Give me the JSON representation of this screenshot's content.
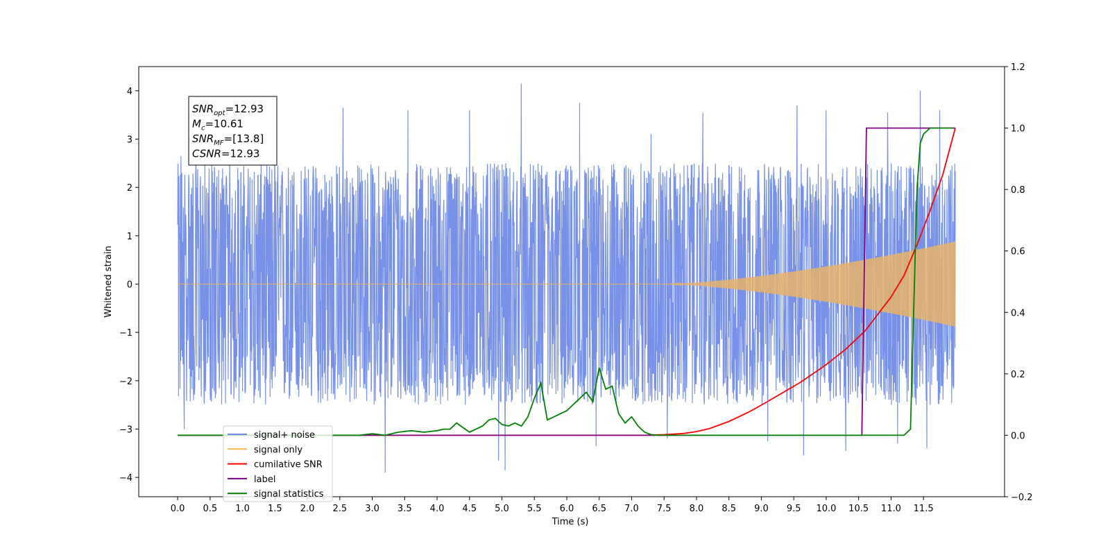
{
  "chart_data": {
    "type": "line",
    "xlabel": "Time (s)",
    "ylabel": "Whitened strain",
    "xlim": [
      -0.6,
      12.75
    ],
    "ylim": [
      -4.4,
      4.5
    ],
    "y2lim": [
      -0.2,
      1.2
    ],
    "x_ticks": [
      "0.0",
      "0.5",
      "1.0",
      "1.5",
      "2.0",
      "2.5",
      "3.0",
      "3.5",
      "4.0",
      "4.5",
      "5.0",
      "5.5",
      "6.0",
      "6.5",
      "7.0",
      "7.5",
      "8.0",
      "8.5",
      "9.0",
      "9.5",
      "10.0",
      "10.5",
      "11.0",
      "11.5"
    ],
    "y_ticks": [
      "−4",
      "−3",
      "−2",
      "−1",
      "0",
      "1",
      "2",
      "3",
      "4"
    ],
    "y2_ticks": [
      "−0.2",
      "0.0",
      "0.2",
      "0.4",
      "0.6",
      "0.8",
      "1.0",
      "1.2"
    ],
    "info_box": [
      {
        "base": "SNR",
        "sub": "opt",
        "text": "=12.93"
      },
      {
        "base": "M",
        "sub": "c",
        "text": "=10.61"
      },
      {
        "base": "SNR",
        "sub": "MF",
        "text": "=[13.8]"
      },
      {
        "base": "CSNR",
        "sub": "",
        "text": "=12.93"
      }
    ],
    "legend": {
      "placement": "lower-left",
      "entries": [
        {
          "label": "signal+ noise",
          "color": "#6f8be6"
        },
        {
          "label": "signal only",
          "color": "#f5b94a"
        },
        {
          "label": "cumilative SNR",
          "color": "#ff0000"
        },
        {
          "label": "label",
          "color": "#800080"
        },
        {
          "label": "signal statistics",
          "color": "#008000"
        }
      ]
    },
    "series": [
      {
        "name": "signal+ noise",
        "axis": "left",
        "color": "#6f8be6",
        "kind": "noise",
        "envelope": 2.5,
        "x_range": [
          0.0,
          11.99
        ],
        "spikes": [
          [
            0.05,
            2.65
          ],
          [
            0.1,
            -3.0
          ],
          [
            1.5,
            3.0
          ],
          [
            2.55,
            3.65
          ],
          [
            3.2,
            -3.9
          ],
          [
            3.55,
            3.6
          ],
          [
            4.5,
            3.6
          ],
          [
            4.95,
            -3.65
          ],
          [
            5.05,
            -3.85
          ],
          [
            5.3,
            4.15
          ],
          [
            6.2,
            3.75
          ],
          [
            6.45,
            -3.35
          ],
          [
            7.3,
            3.1
          ],
          [
            7.55,
            -3.2
          ],
          [
            8.1,
            3.55
          ],
          [
            9.1,
            -3.25
          ],
          [
            9.55,
            3.7
          ],
          [
            9.65,
            -3.55
          ],
          [
            10.0,
            3.6
          ],
          [
            10.3,
            -3.45
          ],
          [
            10.95,
            3.55
          ],
          [
            11.1,
            -3.3
          ],
          [
            11.45,
            4.0
          ],
          [
            11.55,
            -3.4
          ],
          [
            11.75,
            3.6
          ]
        ]
      },
      {
        "name": "signal only",
        "axis": "left",
        "color": "#e8b36a",
        "kind": "chirp",
        "x_range": [
          0.0,
          11.99
        ],
        "amplitude_start": 0.0,
        "amplitude_end": 0.88,
        "onset": 7.5
      },
      {
        "name": "cumilative SNR",
        "axis": "right",
        "color": "#ff0000",
        "x": [
          0.0,
          7.2,
          7.5,
          7.8,
          8.0,
          8.2,
          8.5,
          8.8,
          9.0,
          9.3,
          9.6,
          10.0,
          10.3,
          10.6,
          11.0,
          11.2,
          11.4,
          11.6,
          11.8,
          11.99
        ],
        "y": [
          0.0,
          0.0,
          0.002,
          0.006,
          0.012,
          0.022,
          0.045,
          0.075,
          0.098,
          0.135,
          0.172,
          0.23,
          0.28,
          0.34,
          0.45,
          0.52,
          0.62,
          0.73,
          0.85,
          1.0
        ]
      },
      {
        "name": "label",
        "axis": "right",
        "color": "#800080",
        "x": [
          0.0,
          10.55,
          10.62,
          11.99
        ],
        "y": [
          0.0,
          0.0,
          1.0,
          1.0
        ]
      },
      {
        "name": "signal statistics",
        "axis": "right",
        "color": "#008000",
        "x": [
          0.0,
          2.8,
          3.0,
          3.2,
          3.4,
          3.6,
          3.8,
          4.0,
          4.1,
          4.2,
          4.3,
          4.4,
          4.5,
          4.6,
          4.7,
          4.8,
          4.9,
          5.0,
          5.1,
          5.2,
          5.3,
          5.4,
          5.5,
          5.6,
          5.7,
          5.8,
          5.9,
          6.0,
          6.1,
          6.2,
          6.3,
          6.4,
          6.5,
          6.6,
          6.7,
          6.8,
          6.9,
          7.0,
          7.1,
          7.2,
          7.3,
          7.4,
          8.0,
          9.0,
          10.0,
          11.0,
          11.2,
          11.3,
          11.4,
          11.45,
          11.5,
          11.6,
          11.7,
          11.8,
          11.95
        ],
        "y": [
          0.0,
          0.0,
          0.005,
          0.0,
          0.01,
          0.015,
          0.01,
          0.015,
          0.02,
          0.02,
          0.04,
          0.025,
          0.01,
          0.02,
          0.03,
          0.05,
          0.055,
          0.035,
          0.03,
          0.04,
          0.03,
          0.06,
          0.12,
          0.17,
          0.05,
          0.06,
          0.07,
          0.08,
          0.1,
          0.12,
          0.14,
          0.11,
          0.22,
          0.15,
          0.16,
          0.07,
          0.04,
          0.06,
          0.03,
          0.01,
          0.002,
          0.0,
          0.0,
          0.0,
          0.0,
          0.0,
          0.0,
          0.02,
          0.8,
          0.95,
          0.98,
          1.0,
          1.0,
          1.0,
          1.0
        ]
      }
    ]
  }
}
